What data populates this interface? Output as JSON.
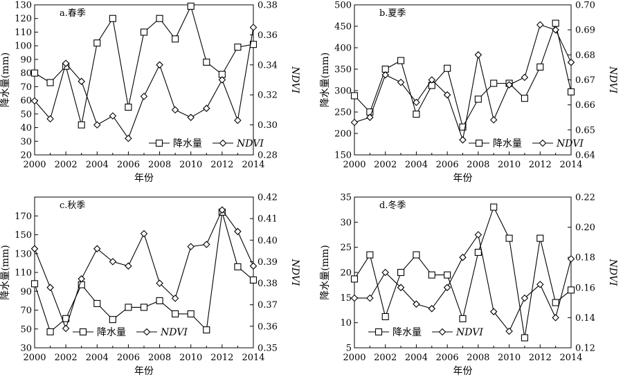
{
  "chart_data": [
    {
      "type": "line",
      "panel_label": "a.春季",
      "x": [
        2000,
        2001,
        2002,
        2003,
        2004,
        2005,
        2006,
        2007,
        2008,
        2009,
        2010,
        2011,
        2012,
        2013,
        2014
      ],
      "xticks": [
        "2000",
        "2002",
        "2004",
        "2006",
        "2008",
        "2010",
        "2012",
        "2014"
      ],
      "xlabel": "年份",
      "ylabel": "降水量(mm)",
      "y2label": "NDVI",
      "ylim": [
        20,
        130
      ],
      "y2lim": [
        0.28,
        0.38
      ],
      "yticks": [
        "20",
        "30",
        "40",
        "50",
        "60",
        "70",
        "80",
        "90",
        "100",
        "110",
        "120",
        "130"
      ],
      "y2ticks": [
        "0.28",
        "0.30",
        "0.32",
        "0.34",
        "0.36",
        "0.38"
      ],
      "legend_position": "bottom-right",
      "series": [
        {
          "name": "降水量",
          "marker": "square",
          "axis": "left",
          "values": [
            80,
            73,
            85,
            42,
            102,
            120,
            55,
            110,
            120,
            105,
            129,
            88,
            79,
            99,
            101
          ]
        },
        {
          "name": "NDVI",
          "marker": "diamond",
          "axis": "right",
          "values": [
            0.316,
            0.304,
            0.341,
            0.329,
            0.3,
            0.306,
            0.291,
            0.319,
            0.34,
            0.31,
            0.305,
            0.311,
            0.33,
            0.303,
            0.365
          ]
        }
      ]
    },
    {
      "type": "line",
      "panel_label": "b.夏季",
      "x": [
        2000,
        2001,
        2002,
        2003,
        2004,
        2005,
        2006,
        2007,
        2008,
        2009,
        2010,
        2011,
        2012,
        2013,
        2014
      ],
      "xticks": [
        "2000",
        "2002",
        "2004",
        "2006",
        "2008",
        "2010",
        "2012",
        "2014"
      ],
      "xlabel": "年份",
      "ylabel": "降水量(mm)",
      "y2label": "NDVI",
      "ylim": [
        150,
        500
      ],
      "y2lim": [
        0.64,
        0.7
      ],
      "yticks": [
        "150",
        "200",
        "250",
        "300",
        "350",
        "400",
        "450",
        "500"
      ],
      "y2ticks": [
        "0.64",
        "0.65",
        "0.66",
        "0.67",
        "0.68",
        "0.69",
        "0.70"
      ],
      "legend_position": "bottom-right",
      "series": [
        {
          "name": "降水量",
          "marker": "square",
          "axis": "left",
          "values": [
            288,
            250,
            350,
            370,
            245,
            312,
            352,
            215,
            280,
            317,
            317,
            282,
            355,
            457,
            297
          ]
        },
        {
          "name": "NDVI",
          "marker": "diamond",
          "axis": "right",
          "values": [
            0.653,
            0.655,
            0.672,
            0.669,
            0.661,
            0.67,
            0.664,
            0.646,
            0.68,
            0.654,
            0.668,
            0.671,
            0.692,
            0.69,
            0.677
          ]
        }
      ]
    },
    {
      "type": "line",
      "panel_label": "c.秋季",
      "x": [
        2000,
        2001,
        2002,
        2003,
        2004,
        2005,
        2006,
        2007,
        2008,
        2009,
        2010,
        2011,
        2012,
        2013,
        2014
      ],
      "xticks": [
        "2000",
        "2002",
        "2004",
        "2006",
        "2008",
        "2010",
        "2012",
        "2014"
      ],
      "xlabel": "年份",
      "ylabel": "降水量(mm)",
      "y2label": "NDVI",
      "ylim": [
        30,
        190
      ],
      "y2lim": [
        0.35,
        0.42
      ],
      "yticks": [
        "30",
        "50",
        "70",
        "90",
        "110",
        "130",
        "150",
        "170"
      ],
      "y2ticks": [
        "0.35",
        "0.36",
        "0.37",
        "0.38",
        "0.39",
        "0.40",
        "0.41",
        "0.42"
      ],
      "legend_position": "bottom-left",
      "series": [
        {
          "name": "降水量",
          "marker": "square",
          "axis": "left",
          "values": [
            98,
            47,
            61,
            97,
            77,
            60,
            73,
            73,
            80,
            66,
            66,
            49,
            174,
            116,
            102
          ]
        },
        {
          "name": "NDVI",
          "marker": "diamond",
          "axis": "right",
          "values": [
            0.396,
            0.378,
            0.359,
            0.382,
            0.396,
            0.39,
            0.388,
            0.403,
            0.38,
            0.373,
            0.397,
            0.398,
            0.414,
            0.404,
            0.388
          ]
        }
      ]
    },
    {
      "type": "line",
      "panel_label": "d.冬季",
      "x": [
        2000,
        2001,
        2002,
        2003,
        2004,
        2005,
        2006,
        2007,
        2008,
        2009,
        2010,
        2011,
        2012,
        2013,
        2014
      ],
      "xticks": [
        "2000",
        "2002",
        "2004",
        "2006",
        "2008",
        "2010",
        "2012",
        "2014"
      ],
      "xlabel": "年份",
      "ylabel": "降水量(mm)",
      "y2label": "NDVI",
      "ylim": [
        5,
        35
      ],
      "y2lim": [
        0.12,
        0.22
      ],
      "yticks": [
        "5",
        "10",
        "15",
        "20",
        "25",
        "30",
        "35"
      ],
      "y2ticks": [
        "0.12",
        "0.14",
        "0.16",
        "0.18",
        "0.20",
        "0.22"
      ],
      "legend_position": "bottom-left",
      "series": [
        {
          "name": "降水量",
          "marker": "square",
          "axis": "left",
          "values": [
            18.7,
            23.5,
            11.2,
            20.0,
            23.5,
            19.5,
            19.5,
            10.8,
            24.0,
            33.0,
            26.8,
            7.0,
            26.8,
            14.0,
            16.5
          ]
        },
        {
          "name": "NDVI",
          "marker": "diamond",
          "axis": "right",
          "values": [
            0.153,
            0.153,
            0.17,
            0.16,
            0.149,
            0.146,
            0.16,
            0.18,
            0.195,
            0.144,
            0.131,
            0.153,
            0.162,
            0.14,
            0.179
          ]
        }
      ]
    }
  ]
}
